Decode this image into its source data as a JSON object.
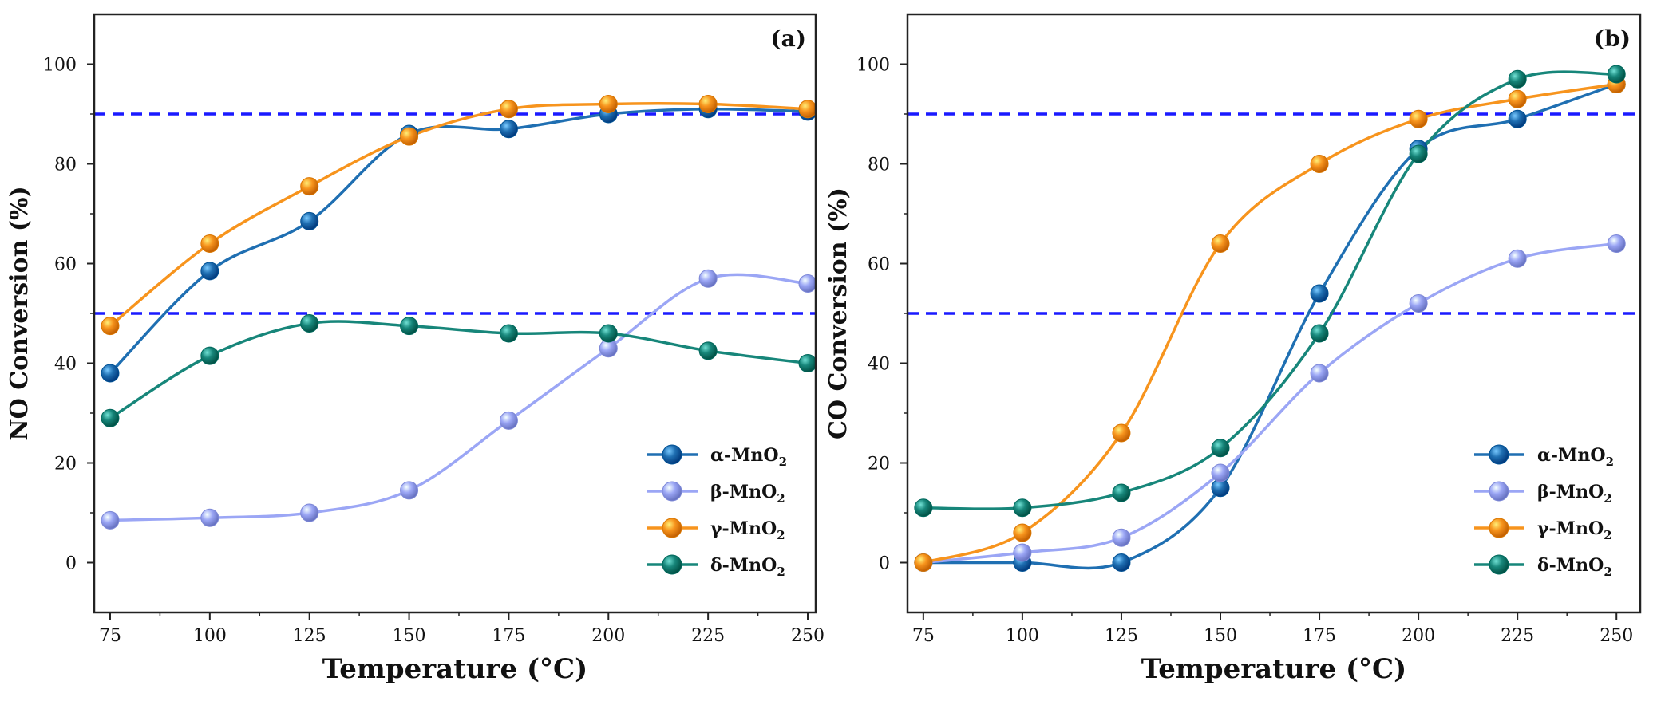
{
  "chart_data": [
    {
      "type": "line",
      "panel_label": "(a)",
      "xlabel": "Temperature (°C)",
      "ylabel": "NO Conversion (%)",
      "x": [
        75,
        100,
        125,
        150,
        175,
        200,
        225,
        250
      ],
      "xlim": [
        71,
        252
      ],
      "ylim": [
        -10,
        110
      ],
      "xticks": [
        75,
        100,
        125,
        150,
        175,
        200,
        225,
        250
      ],
      "yticks": [
        0,
        20,
        40,
        60,
        80,
        100
      ],
      "reference_lines": [
        {
          "y": 90,
          "color": "#1a1aff",
          "style": "dashed"
        },
        {
          "y": 50,
          "color": "#1a1aff",
          "style": "dashed"
        }
      ],
      "legend_position": "bottom-right",
      "series": [
        {
          "name": "α-MnO",
          "subscript": "2",
          "color": "#1f6fb2",
          "values": [
            38,
            58.5,
            68.5,
            86,
            87,
            90,
            91,
            90.5
          ]
        },
        {
          "name": "β-MnO",
          "subscript": "2",
          "color": "#9ba6f5",
          "values": [
            8.5,
            9,
            10,
            14.5,
            28.5,
            43,
            57,
            56
          ]
        },
        {
          "name": "γ-MnO",
          "subscript": "2",
          "color": "#f7941d",
          "values": [
            47.5,
            64,
            75.5,
            85.5,
            91,
            92,
            92,
            91
          ]
        },
        {
          "name": "δ-MnO",
          "subscript": "2",
          "color": "#17867a",
          "values": [
            29,
            41.5,
            48,
            47.5,
            46,
            46,
            42.5,
            40
          ]
        }
      ]
    },
    {
      "type": "line",
      "panel_label": "(b)",
      "xlabel": "Temperature (°C)",
      "ylabel": "CO Conversion (%)",
      "x": [
        75,
        100,
        125,
        150,
        175,
        200,
        225,
        250
      ],
      "xlim": [
        71,
        256
      ],
      "ylim": [
        -10,
        110
      ],
      "xticks": [
        75,
        100,
        125,
        150,
        175,
        200,
        225,
        250
      ],
      "yticks": [
        0,
        20,
        40,
        60,
        80,
        100
      ],
      "reference_lines": [
        {
          "y": 90,
          "color": "#1a1aff",
          "style": "dashed"
        },
        {
          "y": 50,
          "color": "#1a1aff",
          "style": "dashed"
        }
      ],
      "legend_position": "bottom-right",
      "series": [
        {
          "name": "α-MnO",
          "subscript": "2",
          "color": "#1f6fb2",
          "values": [
            0,
            0,
            0,
            15,
            54,
            83,
            89,
            96
          ]
        },
        {
          "name": "β-MnO",
          "subscript": "2",
          "color": "#9ba6f5",
          "values": [
            0,
            2,
            5,
            18,
            38,
            52,
            61,
            64
          ]
        },
        {
          "name": "γ-MnO",
          "subscript": "2",
          "color": "#f7941d",
          "values": [
            0,
            6,
            26,
            64,
            80,
            89,
            93,
            96
          ]
        },
        {
          "name": "δ-MnO",
          "subscript": "2",
          "color": "#17867a",
          "values": [
            11,
            11,
            14,
            23,
            46,
            82,
            97,
            98
          ]
        }
      ]
    }
  ]
}
